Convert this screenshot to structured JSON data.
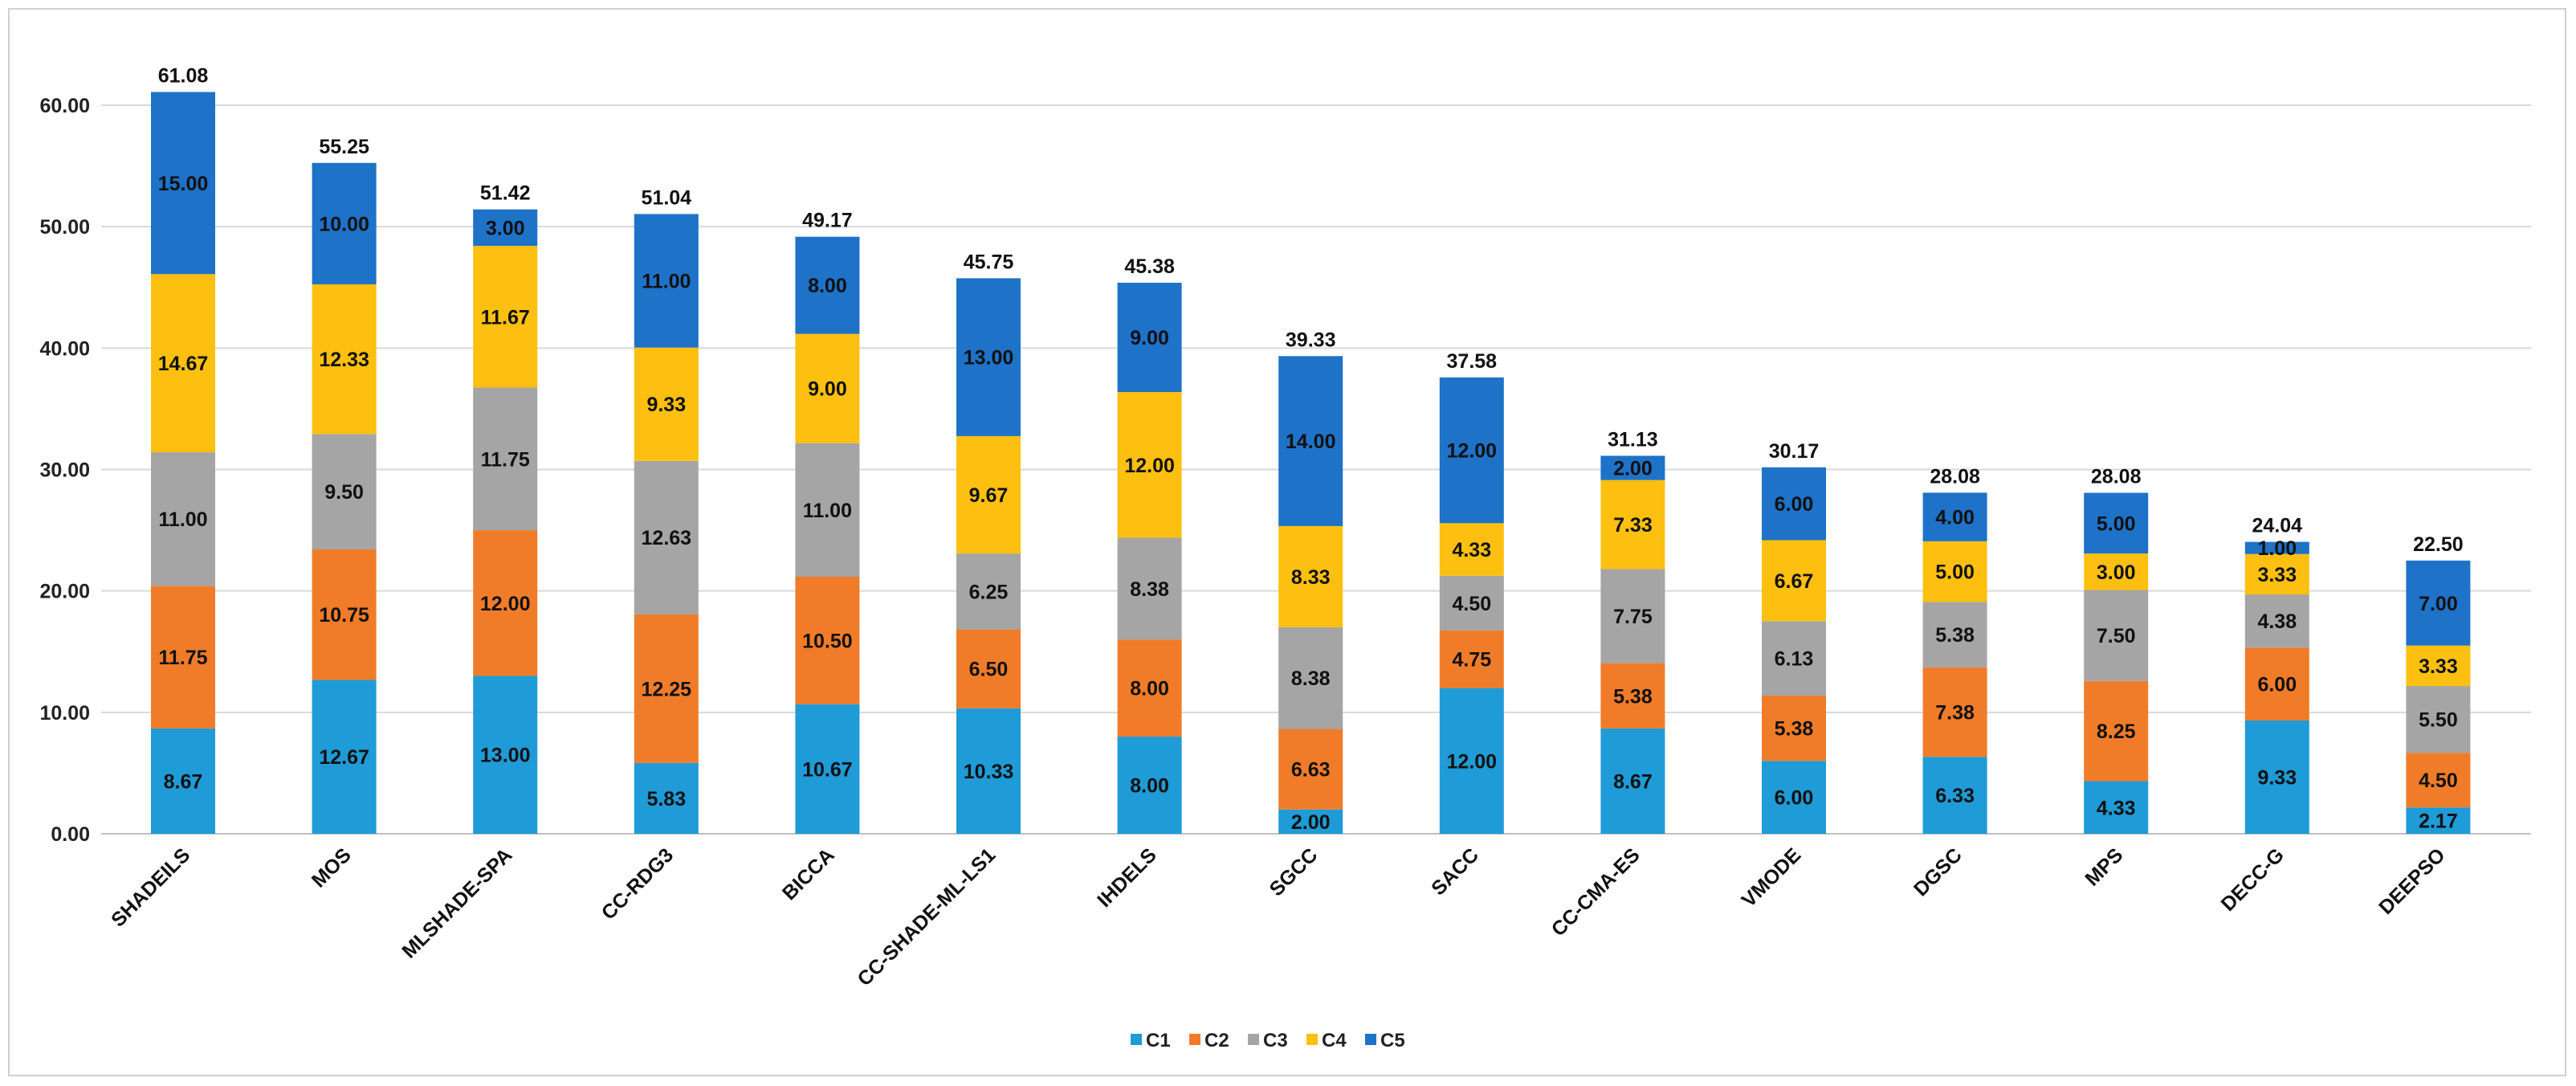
{
  "chart_data": {
    "type": "bar",
    "stacked": true,
    "title": "",
    "xlabel": "",
    "ylabel": "",
    "ylim": [
      0,
      60
    ],
    "y_ticks": [
      "0.00",
      "10.00",
      "20.00",
      "30.00",
      "40.00",
      "50.00",
      "60.00"
    ],
    "grid": true,
    "legend_position": "bottom-center",
    "categories": [
      "SHADEILS",
      "MOS",
      "MLSHADE-SPA",
      "CC-RDG3",
      "BICCA",
      "CC-SHADE-ML-LS1",
      "IHDELS",
      "SGCC",
      "SACC",
      "CC-CMA-ES",
      "VMODE",
      "DGSC",
      "MPS",
      "DECC-G",
      "DEEPSO"
    ],
    "series": [
      {
        "name": "C1",
        "color": "#1f9bd7",
        "values": [
          8.67,
          12.67,
          13.0,
          5.83,
          10.67,
          10.33,
          8.0,
          2.0,
          12.0,
          8.67,
          6.0,
          6.33,
          4.33,
          9.33,
          2.17
        ],
        "labels": [
          "8.67",
          "12.67",
          "13.00",
          "5.83",
          "10.67",
          "10.33",
          "8.00",
          "2.00",
          "12.00",
          "8.67",
          "6.00",
          "6.33",
          "4.33",
          "9.33",
          "2.17"
        ]
      },
      {
        "name": "C2",
        "color": "#f07c2a",
        "values": [
          11.75,
          10.75,
          12.0,
          12.25,
          10.5,
          6.5,
          8.0,
          6.63,
          4.75,
          5.38,
          5.38,
          7.38,
          8.25,
          6.0,
          4.5
        ],
        "labels": [
          "11.75",
          "10.75",
          "12.00",
          "12.25",
          "10.50",
          "6.50",
          "8.00",
          "6.63",
          "4.75",
          "5.38",
          "5.38",
          "7.38",
          "8.25",
          "6.00",
          "4.50"
        ]
      },
      {
        "name": "C3",
        "color": "#a5a5a5",
        "values": [
          11.0,
          9.5,
          11.75,
          12.63,
          11.0,
          6.25,
          8.38,
          8.38,
          4.5,
          7.75,
          6.13,
          5.38,
          7.5,
          4.38,
          5.5
        ],
        "labels": [
          "11.00",
          "9.50",
          "11.75",
          "12.63",
          "11.00",
          "6.25",
          "8.38",
          "8.38",
          "4.50",
          "7.75",
          "6.13",
          "5.38",
          "7.50",
          "4.38",
          "5.50"
        ]
      },
      {
        "name": "C4",
        "color": "#fdc010",
        "values": [
          14.67,
          12.33,
          11.67,
          9.33,
          9.0,
          9.67,
          12.0,
          8.33,
          4.33,
          7.33,
          6.67,
          5.0,
          3.0,
          3.33,
          3.33
        ],
        "labels": [
          "14.67",
          "12.33",
          "11.67",
          "9.33",
          "9.00",
          "9.67",
          "12.00",
          "8.33",
          "4.33",
          "7.33",
          "6.67",
          "5.00",
          "3.00",
          "3.33",
          "3.33"
        ]
      },
      {
        "name": "C5",
        "color": "#1e72c8",
        "values": [
          15.0,
          10.0,
          3.0,
          11.0,
          8.0,
          13.0,
          9.0,
          14.0,
          12.0,
          2.0,
          6.0,
          4.0,
          5.0,
          1.0,
          7.0
        ],
        "labels": [
          "15.00",
          "10.00",
          "3.00",
          "11.00",
          "8.00",
          "13.00",
          "9.00",
          "14.00",
          "12.00",
          "2.00",
          "6.00",
          "4.00",
          "5.00",
          "1.00",
          "7.00"
        ]
      }
    ],
    "totals": [
      61.08,
      55.25,
      51.42,
      51.04,
      49.17,
      45.75,
      45.38,
      39.33,
      37.58,
      31.13,
      30.17,
      28.08,
      28.08,
      24.04,
      22.5
    ],
    "total_labels": [
      "61.08",
      "55.25",
      "51.42",
      "51.04",
      "49.17",
      "45.75",
      "45.38",
      "39.33",
      "37.58",
      "31.13",
      "30.17",
      "28.08",
      "28.08",
      "24.04",
      "22.50"
    ]
  }
}
